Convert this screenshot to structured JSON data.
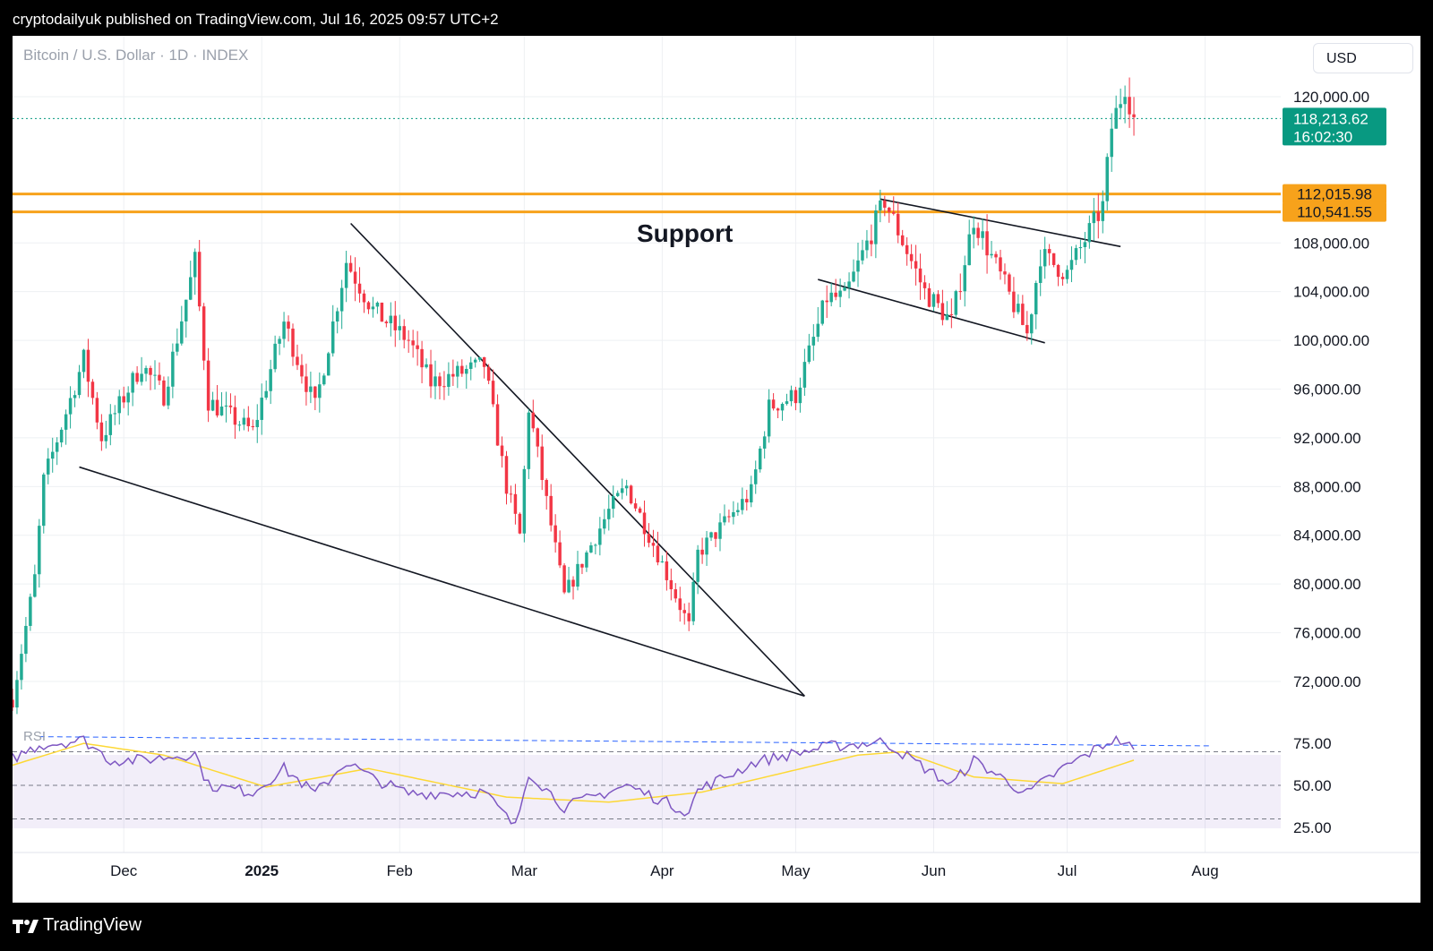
{
  "header": {
    "text": "cryptodailyuk published on TradingView.com, Jul 16, 2025 09:57 UTC+2"
  },
  "chart": {
    "symbol_label": "Bitcoin / U.S. Dollar · 1D · INDEX",
    "currency_button": "USD",
    "support_label": "Support",
    "rsi_label": "RSI",
    "last_price_label": "118,213.62",
    "countdown_label": "16:02:30",
    "level_labels": [
      "112,015.98",
      "110,541.55"
    ],
    "price_ticks": [
      "120,000.00",
      "108,000.00",
      "104,000.00",
      "100,000.00",
      "96,000.00",
      "92,000.00",
      "88,000.00",
      "84,000.00",
      "80,000.00",
      "76,000.00",
      "72,000.00"
    ],
    "rsi_ticks": [
      "75.00",
      "50.00",
      "25.00"
    ],
    "time_ticks": [
      "Dec",
      "2025",
      "Feb",
      "Mar",
      "Apr",
      "May",
      "Jun",
      "Jul",
      "Aug"
    ],
    "colors": {
      "up": "#22ab94",
      "down": "#f23645",
      "level": "#f7a21b",
      "last_price": "#089981",
      "rsi": "#7e57c2",
      "rsi_ma": "#fdd835",
      "trendline": "#131722"
    }
  },
  "footer": {
    "brand": "TradingView"
  },
  "chart_data": {
    "type": "candlestick",
    "title": "Bitcoin / U.S. Dollar · 1D · INDEX",
    "currency": "USD",
    "price_axis": {
      "min": 69500,
      "max": 125000,
      "ticks": [
        72000,
        76000,
        80000,
        84000,
        88000,
        92000,
        96000,
        100000,
        104000,
        108000,
        120000
      ]
    },
    "time_axis": {
      "start": "2024-11-06",
      "end": "2025-08-18",
      "ticks": [
        "Dec",
        "2025",
        "Feb",
        "Mar",
        "Apr",
        "May",
        "Jun",
        "Jul",
        "Aug"
      ]
    },
    "last_price": 118213.62,
    "horizontal_levels": [
      112015.98,
      110541.55
    ],
    "anchors": [
      [
        "2024-11-06",
        70500
      ],
      [
        "2024-11-11",
        80500
      ],
      [
        "2024-11-13",
        88500
      ],
      [
        "2024-11-22",
        98500
      ],
      [
        "2024-11-26",
        92000
      ],
      [
        "2024-12-05",
        98000
      ],
      [
        "2024-12-10",
        95500
      ],
      [
        "2024-12-17",
        106500
      ],
      [
        "2024-12-20",
        95000
      ],
      [
        "2024-12-30",
        92500
      ],
      [
        "2025-01-06",
        101500
      ],
      [
        "2025-01-13",
        94500
      ],
      [
        "2025-01-20",
        106500
      ],
      [
        "2025-01-26",
        102500
      ],
      [
        "2025-02-03",
        100000
      ],
      [
        "2025-02-08",
        96500
      ],
      [
        "2025-02-20",
        98000
      ],
      [
        "2025-02-25",
        88000
      ],
      [
        "2025-02-28",
        84000
      ],
      [
        "2025-03-02",
        94500
      ],
      [
        "2025-03-10",
        79000
      ],
      [
        "2025-03-20",
        86000
      ],
      [
        "2025-03-24",
        88000
      ],
      [
        "2025-03-31",
        82500
      ],
      [
        "2025-04-07",
        76500
      ],
      [
        "2025-04-09",
        82500
      ],
      [
        "2025-04-21",
        87500
      ],
      [
        "2025-04-25",
        94500
      ],
      [
        "2025-05-01",
        95500
      ],
      [
        "2025-05-08",
        103500
      ],
      [
        "2025-05-12",
        103500
      ],
      [
        "2025-05-21",
        111500
      ],
      [
        "2025-05-30",
        104000
      ],
      [
        "2025-06-05",
        101500
      ],
      [
        "2025-06-10",
        110000
      ],
      [
        "2025-06-17",
        104500
      ],
      [
        "2025-06-22",
        100500
      ],
      [
        "2025-06-25",
        107000
      ],
      [
        "2025-07-01",
        105500
      ],
      [
        "2025-07-09",
        111000
      ],
      [
        "2025-07-11",
        117500
      ],
      [
        "2025-07-14",
        121000
      ],
      [
        "2025-07-16",
        118213.62
      ]
    ],
    "trendlines": [
      {
        "from": [
          "2024-11-21",
          89600
        ],
        "to": [
          "2025-05-03",
          70800
        ]
      },
      {
        "from": [
          "2025-01-21",
          109600
        ],
        "to": [
          "2025-05-03",
          70800
        ]
      },
      {
        "from": [
          "2025-05-06",
          105000
        ],
        "to": [
          "2025-06-26",
          99800
        ]
      },
      {
        "from": [
          "2025-05-20",
          111600
        ],
        "to": [
          "2025-07-13",
          107700
        ]
      }
    ],
    "rsi": {
      "ticks": [
        25,
        50,
        75
      ],
      "levels": [
        30,
        50,
        70
      ],
      "anchors": [
        [
          "2024-11-06",
          66
        ],
        [
          "2024-11-12",
          74
        ],
        [
          "2024-11-22",
          77
        ],
        [
          "2024-11-28",
          65
        ],
        [
          "2024-12-05",
          65
        ],
        [
          "2024-12-17",
          69
        ],
        [
          "2024-12-20",
          50
        ],
        [
          "2024-12-30",
          46
        ],
        [
          "2025-01-06",
          60
        ],
        [
          "2025-01-13",
          45
        ],
        [
          "2025-01-20",
          64
        ],
        [
          "2025-01-26",
          54
        ],
        [
          "2025-02-03",
          45
        ],
        [
          "2025-02-20",
          46
        ],
        [
          "2025-02-27",
          25
        ],
        [
          "2025-03-02",
          58
        ],
        [
          "2025-03-10",
          37
        ],
        [
          "2025-03-24",
          50
        ],
        [
          "2025-04-07",
          34
        ],
        [
          "2025-04-09",
          47
        ],
        [
          "2025-04-22",
          64
        ],
        [
          "2025-05-08",
          73
        ],
        [
          "2025-05-21",
          76
        ],
        [
          "2025-06-05",
          50
        ],
        [
          "2025-06-10",
          65
        ],
        [
          "2025-06-22",
          45
        ],
        [
          "2025-06-30",
          60
        ],
        [
          "2025-07-11",
          77
        ],
        [
          "2025-07-14",
          76
        ],
        [
          "2025-07-16",
          70
        ]
      ],
      "ma_anchors": [
        [
          "2024-11-06",
          62
        ],
        [
          "2024-11-22",
          75
        ],
        [
          "2024-12-10",
          68
        ],
        [
          "2025-01-02",
          49
        ],
        [
          "2025-01-25",
          60
        ],
        [
          "2025-02-25",
          43
        ],
        [
          "2025-03-20",
          40
        ],
        [
          "2025-04-10",
          46
        ],
        [
          "2025-05-15",
          68
        ],
        [
          "2025-05-25",
          70
        ],
        [
          "2025-06-10",
          55
        ],
        [
          "2025-06-30",
          51
        ],
        [
          "2025-07-16",
          65
        ]
      ],
      "divergence_line": {
        "from": [
          "2024-11-12",
          79
        ],
        "to": [
          "2025-08-02",
          73.5
        ]
      }
    }
  }
}
